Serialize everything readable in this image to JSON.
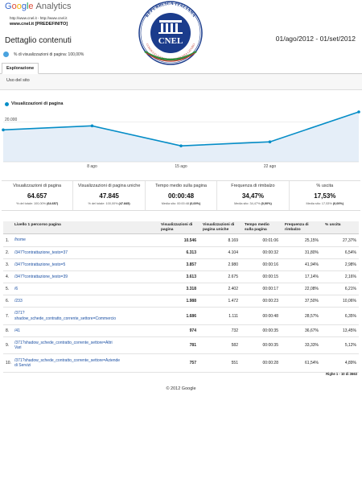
{
  "header": {
    "logo_google": "Google",
    "logo_analytics": "Analytics",
    "urls": "http://www.cnel.it - http://www.cnel.it",
    "profile": "www.cnel.it [PREDEFINITO]",
    "seal_top_text": "REPUBBLICA ITALIANA",
    "seal_name": "CNEL",
    "seal_bottom_text": "CONSIGLIO NAZIONALE ECONOMIA LAVORO",
    "page_title": "Dettaglio contenuti",
    "date_range": "01/ago/2012 - 01/set/2012"
  },
  "segment": {
    "label": "% di visualizzazioni di pagina: 100,00%"
  },
  "tabs": {
    "active": "Esplorazione",
    "subtab": "Uso del sito"
  },
  "chart_data": {
    "type": "line",
    "legend": "Visualizzazioni di pagina",
    "y_tick_labels": [
      "20.000",
      "10.000"
    ],
    "x_tick_labels": [
      "8 ago",
      "15 ago",
      "22 ago"
    ],
    "ylim": [
      0,
      25000
    ],
    "x": [
      1,
      8,
      15,
      22,
      29
    ],
    "values": [
      16000,
      18000,
      8000,
      10000,
      25000
    ],
    "color": "#058dc7"
  },
  "metrics": [
    {
      "label": "Visualizzazioni di pagina",
      "value": "64.657",
      "sub_prefix": "% del totale: 100,00%",
      "sub_bold": "(64.657)"
    },
    {
      "label": "Visualizzazioni di pagina uniche",
      "value": "47.845",
      "sub_prefix": "% del totale: 100,00%",
      "sub_bold": "(47.845)"
    },
    {
      "label": "Tempo medio sulla pagina",
      "value": "00:00:48",
      "sub_prefix": "Media sito: 00:00:48",
      "sub_bold": "(0,00%)"
    },
    {
      "label": "Frequenza di rimbalzo",
      "value": "34,47%",
      "sub_prefix": "Media sito: 34,47%",
      "sub_bold": "(0,00%)"
    },
    {
      "label": "% uscita",
      "value": "17,53%",
      "sub_prefix": "Media sito: 17,53%",
      "sub_bold": "(0,00%)"
    }
  ],
  "table": {
    "headers": {
      "dimension": "Livello 1 percorso pagina",
      "views": "Visualizzazioni di pagina",
      "unique": "Visualizzazioni di pagina uniche",
      "time": "Tempo medio sulla pagina",
      "bounce": "Frequenza di rimbalzo",
      "exit": "% uscita"
    },
    "rows": [
      {
        "n": "1.",
        "page": "/home",
        "views": "10.546",
        "unique": "8.169",
        "time": "00:01:06",
        "bounce": "25,15%",
        "exit": "27,37%"
      },
      {
        "n": "2.",
        "page": "/347?contrattazione_testo=37",
        "views": "6.313",
        "unique": "4.104",
        "time": "00:00:32",
        "bounce": "31,80%",
        "exit": "6,54%"
      },
      {
        "n": "3.",
        "page": "/347?contrattazione_testo=5",
        "views": "3.857",
        "unique": "2.980",
        "time": "00:00:16",
        "bounce": "41,94%",
        "exit": "2,98%"
      },
      {
        "n": "4.",
        "page": "/347?contrattazione_testo=39",
        "views": "3.613",
        "unique": "2.675",
        "time": "00:00:15",
        "bounce": "17,14%",
        "exit": "2,16%"
      },
      {
        "n": "5.",
        "page": "/6",
        "views": "3.318",
        "unique": "2.402",
        "time": "00:00:17",
        "bounce": "22,08%",
        "exit": "6,21%"
      },
      {
        "n": "6.",
        "page": "/233",
        "views": "1.988",
        "unique": "1.472",
        "time": "00:00:23",
        "bounce": "37,50%",
        "exit": "10,06%"
      },
      {
        "n": "7.",
        "page": "/371?\nshadow_schede_contratto_corrente_settore=Commercio",
        "views": "1.686",
        "unique": "1.111",
        "time": "00:00:48",
        "bounce": "28,57%",
        "exit": "6,35%"
      },
      {
        "n": "8.",
        "page": "/41",
        "views": "974",
        "unique": "732",
        "time": "00:00:35",
        "bounce": "36,67%",
        "exit": "13,45%"
      },
      {
        "n": "9.",
        "page": "/371?shadow_schede_contratto_corrente_settore=Altri\nVari",
        "views": "781",
        "unique": "582",
        "time": "00:00:35",
        "bounce": "33,33%",
        "exit": "5,12%"
      },
      {
        "n": "10.",
        "page": "/371?shadow_schede_contratto_corrente_settore=Aziende\ndi Servizi",
        "views": "757",
        "unique": "551",
        "time": "00:00:28",
        "bounce": "61,54%",
        "exit": "4,89%"
      }
    ],
    "rows_info": "Righe 1 - 10 di 3663"
  },
  "footer": "© 2012 Google"
}
